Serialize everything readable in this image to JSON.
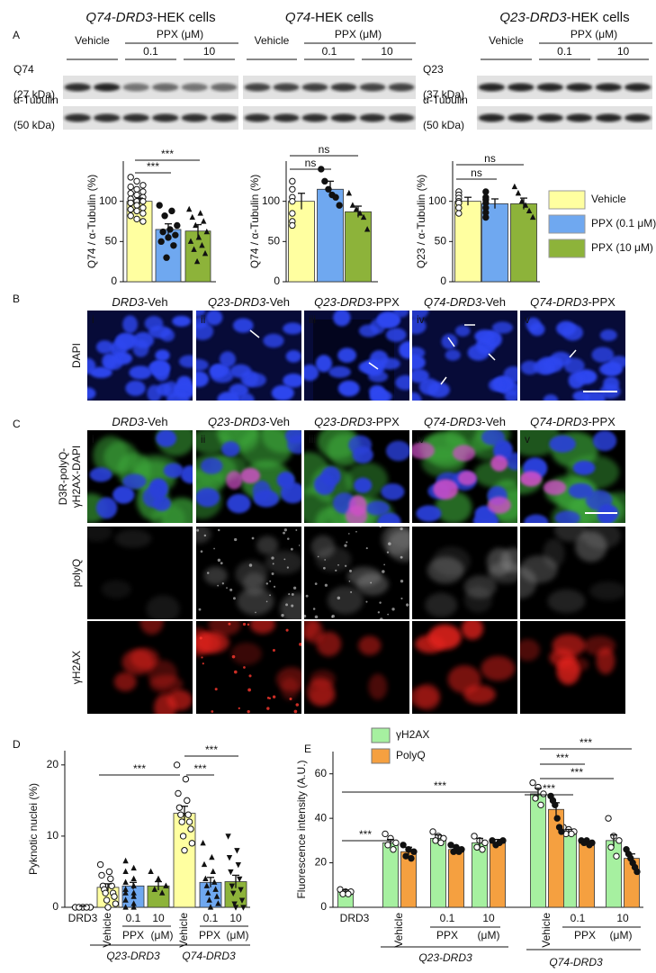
{
  "panel_labels": [
    "A",
    "B",
    "C",
    "D",
    "E"
  ],
  "blots": [
    {
      "title": {
        "italic": "Q74-DRD3",
        "rest": "-HEK cells"
      },
      "vehicle": "Vehicle",
      "ppx": "PPX (μM)",
      "doses": [
        "0.1",
        "10"
      ],
      "rows": [
        {
          "protein": "Q74",
          "size": "(27 kDa)"
        },
        {
          "protein": "α-Tubulin",
          "size": "(50 kDa)"
        }
      ]
    },
    {
      "title": {
        "italic": "Q74",
        "rest": "-HEK cells"
      },
      "vehicle": "Vehicle",
      "ppx": "PPX (μM)",
      "doses": [
        "0.1",
        "10"
      ],
      "rows": []
    },
    {
      "title": {
        "italic": "Q23-DRD3",
        "rest": "-HEK cells"
      },
      "vehicle": "Vehicle",
      "ppx": "PPX (μM)",
      "doses": [
        "0.1",
        "10"
      ],
      "rows": [
        {
          "protein": "Q23",
          "size": "(37 kDa)"
        },
        {
          "protein": "α-Tubulin",
          "size": "(50 kDa)"
        }
      ]
    }
  ],
  "legend_a": [
    {
      "label": "Vehicle",
      "color": "#ffffa0"
    },
    {
      "label": "PPX (0.1 μM)",
      "color": "#6fa8f0"
    },
    {
      "label": "PPX (10 μM)",
      "color": "#8db33a"
    }
  ],
  "panel_b": {
    "row_label": "DAPI",
    "numerals": [
      "i",
      "ii",
      "iii",
      "iv",
      "v"
    ],
    "conditions": [
      {
        "italic": "DRD3",
        "rest": "-Veh"
      },
      {
        "italic": "Q23-DRD3",
        "rest": "-Veh"
      },
      {
        "italic": "Q23-DRD3",
        "rest": "-PPX"
      },
      {
        "italic": "Q74-DRD3",
        "rest": "-Veh"
      },
      {
        "italic": "Q74-DRD3",
        "rest": "-PPX"
      }
    ]
  },
  "panel_c": {
    "numerals": [
      "i",
      "ii",
      "iii",
      "iv",
      "v"
    ],
    "conditions": [
      {
        "italic": "DRD3",
        "rest": "-Veh"
      },
      {
        "italic": "Q23-DRD3",
        "rest": "-Veh"
      },
      {
        "italic": "Q23-DRD3",
        "rest": "-PPX"
      },
      {
        "italic": "Q74-DRD3",
        "rest": "-Veh"
      },
      {
        "italic": "Q74-DRD3",
        "rest": "-PPX"
      }
    ],
    "rows": [
      {
        "lines": [
          "D3R-polyQ-",
          "γH2AX-DAPI"
        ]
      },
      {
        "lines": [
          "polyQ"
        ]
      },
      {
        "lines": [
          "γH2AX"
        ]
      }
    ]
  },
  "chart_data": [
    {
      "type": "bar",
      "y_label": "Q74 / α-Tubulin (%)",
      "ylim": [
        0,
        150
      ],
      "yticks": [
        0,
        50,
        100
      ],
      "colors": [
        "#ffffa0",
        "#6fa8f0",
        "#8db33a"
      ],
      "markers": [
        "open-circle",
        "filled-circle",
        "triangle"
      ],
      "values": [
        100,
        65,
        63
      ],
      "errors": [
        4,
        7,
        8
      ],
      "points": [
        [
          130,
          125,
          120,
          118,
          115,
          112,
          110,
          108,
          105,
          103,
          100,
          100,
          98,
          95,
          92,
          90,
          88,
          85,
          82,
          78,
          75
        ],
        [
          95,
          88,
          82,
          70,
          65,
          62,
          58,
          55,
          50,
          45,
          30
        ],
        [
          90,
          85,
          80,
          75,
          70,
          62,
          55,
          50,
          45,
          40,
          35,
          25
        ]
      ],
      "brackets": [
        {
          "label": "***"
        },
        {
          "label": "***"
        }
      ]
    },
    {
      "type": "bar",
      "y_label": "Q74 / α-Tubulin (%)",
      "ylim": [
        0,
        150
      ],
      "yticks": [
        0,
        50,
        100
      ],
      "colors": [
        "#ffffa0",
        "#6fa8f0",
        "#8db33a"
      ],
      "markers": [
        "open-circle",
        "filled-circle",
        "triangle"
      ],
      "values": [
        100,
        115,
        87
      ],
      "errors": [
        10,
        10,
        7
      ],
      "points": [
        [
          125,
          115,
          105,
          100,
          85,
          75,
          70
        ],
        [
          140,
          125,
          115,
          108,
          105,
          95
        ],
        [
          110,
          95,
          90,
          85,
          80,
          65
        ]
      ],
      "brackets": [
        {
          "label": "ns"
        },
        {
          "label": "ns"
        }
      ]
    },
    {
      "type": "bar",
      "y_label": "Q23 / α-Tubulin (%)",
      "ylim": [
        0,
        150
      ],
      "yticks": [
        0,
        50,
        100
      ],
      "colors": [
        "#ffffa0",
        "#6fa8f0",
        "#8db33a"
      ],
      "markers": [
        "open-circle",
        "filled-circle",
        "triangle"
      ],
      "values": [
        100,
        97,
        97
      ],
      "errors": [
        5,
        6,
        7
      ],
      "points": [
        [
          112,
          108,
          104,
          100,
          98,
          92,
          85
        ],
        [
          112,
          105,
          102,
          98,
          92,
          86,
          80
        ],
        [
          118,
          110,
          100,
          95,
          88,
          80
        ]
      ],
      "brackets": [
        {
          "label": "ns"
        },
        {
          "label": "ns"
        }
      ]
    },
    {
      "type": "bar",
      "y_label": "Pyknotic nuclei (%)",
      "ylim": [
        0,
        22
      ],
      "yticks": [
        0,
        10,
        20
      ],
      "categories": [
        "DRD3",
        "Vehicle",
        "0.1",
        "10",
        "Vehicle",
        "0.1",
        "10"
      ],
      "x_groups": [
        {
          "label": "Q23-DRD3",
          "treatment": "PPX",
          "unit": "(μM)"
        },
        {
          "label": "Q74-DRD3",
          "treatment": "PPX",
          "unit": "(μM)"
        }
      ],
      "colors": [
        "#ffffff",
        "#ffffa0",
        "#6fa8f0",
        "#8db33a",
        "#ffffa0",
        "#6fa8f0",
        "#8db33a"
      ],
      "markers": [
        "open-circle",
        "open-circle",
        "triangle",
        "triangle",
        "open-circle",
        "triangle",
        "down-triangle"
      ],
      "values": [
        0.1,
        2.8,
        3.0,
        3.0,
        13.2,
        3.5,
        3.6
      ],
      "errors": [
        0.05,
        0.5,
        0.5,
        0.6,
        1.0,
        0.7,
        0.9
      ],
      "points": [
        [
          0,
          0,
          0,
          0,
          0
        ],
        [
          6,
          5,
          4.5,
          4,
          3,
          3,
          2.5,
          2,
          2,
          1.5,
          1,
          0.5,
          0
        ],
        [
          6.5,
          5.5,
          5,
          4,
          3.5,
          3,
          2.5,
          2,
          2,
          1.5,
          1,
          0.5,
          0,
          0
        ],
        [
          5,
          4,
          3,
          2.5,
          2
        ],
        [
          20,
          18,
          16,
          15,
          14,
          13,
          13,
          12,
          12,
          11,
          10,
          9,
          8
        ],
        [
          9,
          7,
          6,
          5,
          4,
          3.5,
          3,
          2.5,
          2,
          1.5,
          1,
          0.5,
          0
        ],
        [
          10,
          8,
          7,
          6,
          5,
          4,
          3,
          2.5,
          2,
          1,
          0.5,
          0,
          0
        ]
      ],
      "brackets": [
        {
          "label": "***"
        },
        {
          "label": "***"
        },
        {
          "label": "***"
        }
      ]
    },
    {
      "type": "grouped_bar",
      "y_label": "Fluorescence  intensity (A.U.)",
      "ylim": [
        0,
        70
      ],
      "yticks": [
        0,
        20,
        40,
        60
      ],
      "categories": [
        "DRD3",
        "Vehicle",
        "0.1",
        "10",
        "Vehicle",
        "0.1",
        "10"
      ],
      "x_groups": [
        {
          "label": "Q23-DRD3",
          "treatment": "PPX",
          "unit": "(μM)"
        },
        {
          "label": "Q74-DRD3",
          "treatment": "PPX",
          "unit": "(μM)"
        }
      ],
      "series": [
        {
          "name": "γH2AX",
          "color": "#a6f0a0",
          "marker": "open-circle",
          "values": [
            7,
            29,
            31,
            29,
            51,
            34,
            30
          ],
          "errors": [
            0.8,
            1.5,
            1.5,
            2,
            2.5,
            1,
            2.5
          ],
          "points": [
            [
              8,
              7,
              7,
              6,
              6
            ],
            [
              33,
              31,
              29,
              28,
              26
            ],
            [
              34,
              32,
              31,
              30,
              29
            ],
            [
              32,
              30,
              29,
              27,
              26
            ],
            [
              56,
              54,
              51,
              49,
              46
            ],
            [
              36,
              35,
              34,
              33,
              33
            ],
            [
              40,
              32,
              30,
              27,
              23
            ]
          ]
        },
        {
          "name": "PolyQ",
          "color": "#f5a040",
          "marker": "filled-circle",
          "values": [
            null,
            25,
            26,
            29,
            44,
            29,
            22
          ],
          "errors": [
            null,
            2,
            1,
            1.5,
            3,
            0.5,
            2
          ],
          "points": [
            [],
            [
              28,
              26,
              25,
              23,
              22
            ],
            [
              28,
              27,
              26,
              25,
              25
            ],
            [
              30,
              30,
              29,
              28
            ],
            [
              50,
              48,
              46,
              40,
              36,
              34
            ],
            [
              30,
              30,
              29,
              29,
              28
            ],
            [
              26,
              24,
              22,
              20,
              18,
              16
            ]
          ]
        }
      ],
      "brackets": [
        {
          "label": "***"
        },
        {
          "label": "***"
        },
        {
          "label": "***"
        },
        {
          "label": "***"
        },
        {
          "label": "***"
        },
        {
          "label": "***"
        }
      ]
    }
  ]
}
